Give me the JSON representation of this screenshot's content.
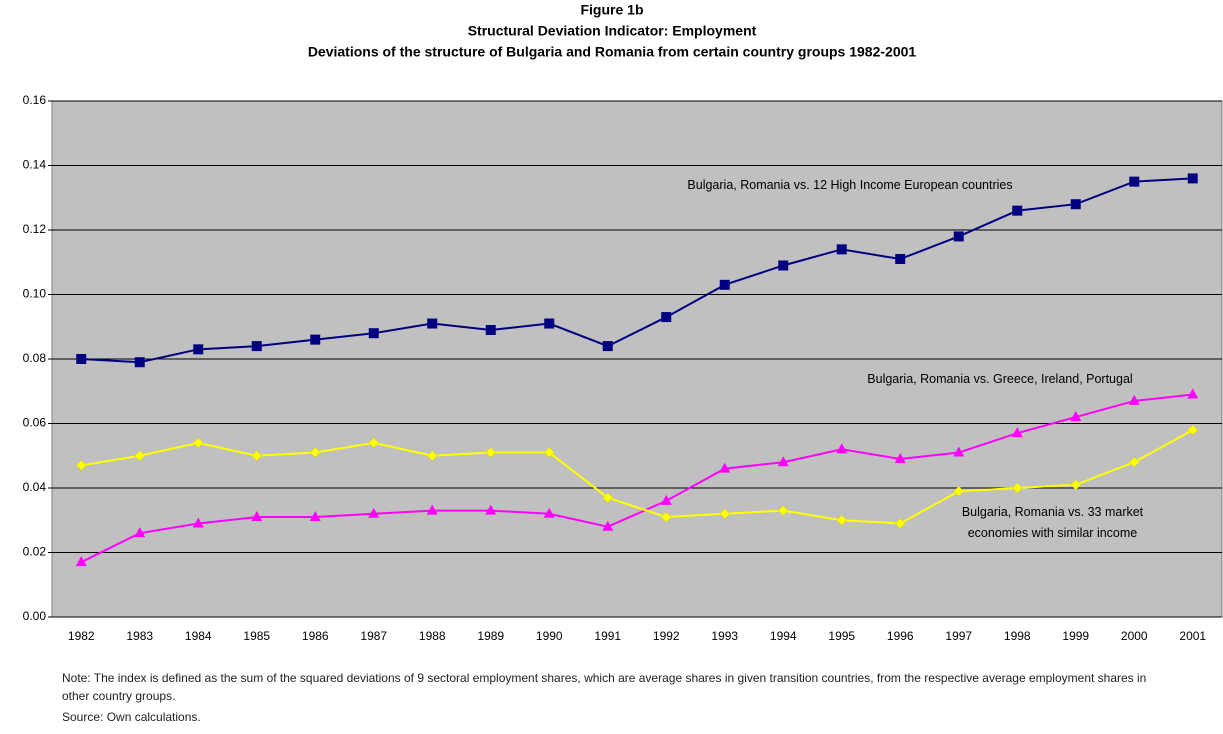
{
  "chart_data": {
    "type": "line",
    "title": "Figure 1b",
    "subtitle": [
      "Structural Deviation Indicator: Employment",
      "Deviations of the structure of Bulgaria and Romania from certain country groups 1982-2001"
    ],
    "categories": [
      "1982",
      "1983",
      "1984",
      "1985",
      "1986",
      "1987",
      "1988",
      "1989",
      "1990",
      "1991",
      "1992",
      "1993",
      "1994",
      "1995",
      "1996",
      "1997",
      "1998",
      "1999",
      "2000",
      "2001"
    ],
    "series": [
      {
        "name": "Bulgaria, Romania vs. 12 High Income European countries",
        "color": "#000080",
        "marker": "square",
        "values": [
          0.08,
          0.079,
          0.083,
          0.084,
          0.086,
          0.088,
          0.091,
          0.089,
          0.091,
          0.084,
          0.093,
          0.103,
          0.109,
          0.114,
          0.111,
          0.118,
          0.126,
          0.128,
          0.135,
          0.136
        ]
      },
      {
        "name": "Bulgaria, Romania vs. Greece, Ireland, Portugal",
        "color": "#FF00FF",
        "marker": "triangle",
        "values": [
          0.017,
          0.026,
          0.029,
          0.031,
          0.031,
          0.032,
          0.033,
          0.033,
          0.032,
          0.028,
          0.036,
          0.046,
          0.048,
          0.052,
          0.049,
          0.051,
          0.057,
          0.062,
          0.067,
          0.069
        ]
      },
      {
        "name": "Bulgaria, Romania vs. 33 market economies with similar income",
        "color": "#FFFF00",
        "marker": "diamond",
        "values": [
          0.047,
          0.05,
          0.054,
          0.05,
          0.051,
          0.054,
          0.05,
          0.051,
          0.051,
          0.037,
          0.031,
          0.032,
          0.033,
          0.03,
          0.029,
          0.039,
          0.04,
          0.041,
          0.048,
          0.058
        ]
      }
    ],
    "ylim": [
      0,
      0.16
    ],
    "yticks": [
      {
        "value": 0,
        "label": "0.00"
      },
      {
        "value": 0.02,
        "label": "0.02"
      },
      {
        "value": 0.04,
        "label": "0.04"
      },
      {
        "value": 0.06,
        "label": "0.06"
      },
      {
        "value": 0.08,
        "label": "0.08"
      },
      {
        "value": 0.1,
        "label": "0.10"
      },
      {
        "value": 0.12,
        "label": "0.12"
      },
      {
        "value": 0.14,
        "label": "0.14"
      },
      {
        "value": 0.16,
        "label": "0.16"
      }
    ],
    "grid": true,
    "background": "#C0C0C0",
    "note": "Note: The index is defined as the sum of the squared deviations of 9 sectoral employment shares, which are average shares in given transition countries, from the respective average employment shares in other country groups.",
    "source": "Source: Own calculations."
  }
}
